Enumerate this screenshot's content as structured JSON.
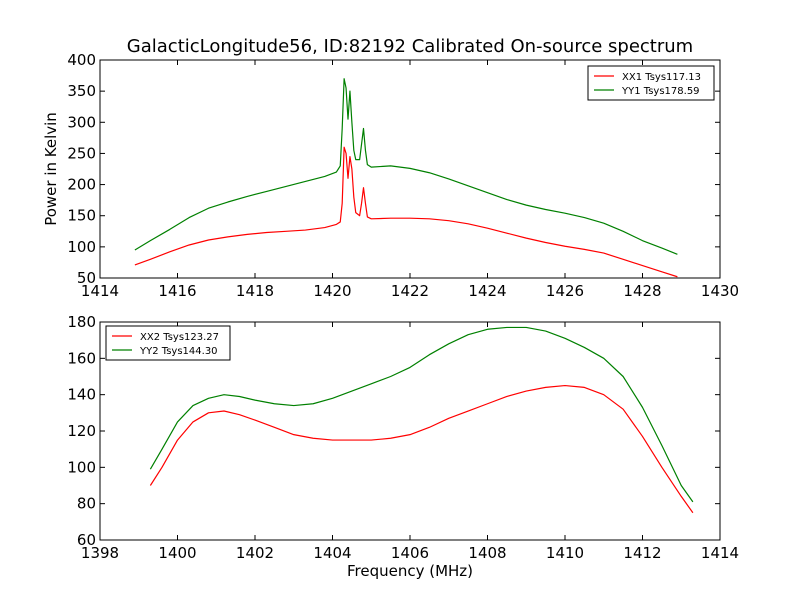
{
  "figure": {
    "title": "GalacticLongitude56, ID:82192 Calibrated On-source spectrum"
  },
  "colors": {
    "red": "#ff0000",
    "green": "#008000"
  },
  "chart_data": [
    {
      "type": "line",
      "title": "GalacticLongitude56, ID:82192 Calibrated On-source spectrum",
      "xlabel": "",
      "ylabel": "Power in Kelvin",
      "xlim": [
        1414,
        1430
      ],
      "ylim": [
        50,
        400
      ],
      "xticks": [
        "1414",
        "1416",
        "1418",
        "1420",
        "1422",
        "1424",
        "1426",
        "1428",
        "1430"
      ],
      "yticks": [
        "50",
        "100",
        "150",
        "200",
        "250",
        "300",
        "350",
        "400"
      ],
      "grid": false,
      "legend_position": "top-right",
      "series": [
        {
          "name": "XX1 Tsys117.13",
          "color": "#ff0000",
          "x": [
            1414.9,
            1415.3,
            1415.8,
            1416.3,
            1416.8,
            1417.3,
            1417.8,
            1418.3,
            1418.8,
            1419.3,
            1419.8,
            1420.1,
            1420.2,
            1420.25,
            1420.3,
            1420.35,
            1420.4,
            1420.45,
            1420.5,
            1420.55,
            1420.6,
            1420.7,
            1420.75,
            1420.8,
            1420.85,
            1420.9,
            1421.0,
            1421.5,
            1422.0,
            1422.5,
            1423.0,
            1423.5,
            1424.0,
            1424.5,
            1425.0,
            1425.5,
            1426.0,
            1426.5,
            1427.0,
            1427.5,
            1428.0,
            1428.5,
            1428.9
          ],
          "y": [
            71,
            80,
            92,
            103,
            111,
            116,
            120,
            123,
            125,
            127,
            131,
            136,
            140,
            170,
            260,
            250,
            210,
            245,
            225,
            180,
            155,
            150,
            170,
            195,
            170,
            148,
            145,
            146,
            146,
            145,
            142,
            137,
            130,
            122,
            114,
            107,
            101,
            96,
            90,
            80,
            70,
            60,
            52
          ]
        },
        {
          "name": "YY1 Tsys178.59",
          "color": "#008000",
          "x": [
            1414.9,
            1415.3,
            1415.8,
            1416.3,
            1416.8,
            1417.3,
            1417.8,
            1418.3,
            1418.8,
            1419.3,
            1419.8,
            1420.1,
            1420.2,
            1420.25,
            1420.3,
            1420.35,
            1420.4,
            1420.45,
            1420.5,
            1420.55,
            1420.6,
            1420.7,
            1420.75,
            1420.8,
            1420.85,
            1420.9,
            1421.0,
            1421.5,
            1422.0,
            1422.5,
            1423.0,
            1423.5,
            1424.0,
            1424.5,
            1425.0,
            1425.5,
            1426.0,
            1426.5,
            1427.0,
            1427.5,
            1428.0,
            1428.5,
            1428.9
          ],
          "y": [
            95,
            110,
            128,
            147,
            162,
            172,
            181,
            189,
            197,
            205,
            213,
            220,
            230,
            290,
            370,
            355,
            305,
            350,
            300,
            255,
            240,
            240,
            265,
            290,
            255,
            232,
            228,
            230,
            226,
            219,
            209,
            198,
            187,
            176,
            167,
            160,
            154,
            147,
            138,
            125,
            110,
            98,
            88
          ]
        }
      ]
    },
    {
      "type": "line",
      "title": "",
      "xlabel": "Frequency (MHz)",
      "ylabel": "",
      "xlim": [
        1398,
        1414
      ],
      "ylim": [
        60,
        180
      ],
      "xticks": [
        "1398",
        "1400",
        "1402",
        "1404",
        "1406",
        "1408",
        "1410",
        "1412",
        "1414"
      ],
      "yticks": [
        "60",
        "80",
        "100",
        "120",
        "140",
        "160",
        "180"
      ],
      "grid": false,
      "legend_position": "top-left",
      "series": [
        {
          "name": "XX2 Tsys123.27",
          "color": "#ff0000",
          "x": [
            1399.3,
            1399.6,
            1400.0,
            1400.4,
            1400.8,
            1401.2,
            1401.6,
            1402.0,
            1402.5,
            1403.0,
            1403.5,
            1404.0,
            1404.5,
            1405.0,
            1405.5,
            1406.0,
            1406.5,
            1407.0,
            1407.5,
            1408.0,
            1408.5,
            1409.0,
            1409.5,
            1410.0,
            1410.5,
            1411.0,
            1411.5,
            1412.0,
            1412.5,
            1413.0,
            1413.3
          ],
          "y": [
            90,
            100,
            115,
            125,
            130,
            131,
            129,
            126,
            122,
            118,
            116,
            115,
            115,
            115,
            116,
            118,
            122,
            127,
            131,
            135,
            139,
            142,
            144,
            145,
            144,
            140,
            132,
            117,
            100,
            84,
            75
          ]
        },
        {
          "name": "YY2 Tsys144.30",
          "color": "#008000",
          "x": [
            1399.3,
            1399.6,
            1400.0,
            1400.4,
            1400.8,
            1401.2,
            1401.6,
            1402.0,
            1402.5,
            1403.0,
            1403.5,
            1404.0,
            1404.5,
            1405.0,
            1405.5,
            1406.0,
            1406.5,
            1407.0,
            1407.5,
            1408.0,
            1408.5,
            1409.0,
            1409.5,
            1410.0,
            1410.5,
            1411.0,
            1411.5,
            1412.0,
            1412.5,
            1413.0,
            1413.3
          ],
          "y": [
            99,
            110,
            125,
            134,
            138,
            140,
            139,
            137,
            135,
            134,
            135,
            138,
            142,
            146,
            150,
            155,
            162,
            168,
            173,
            176,
            177,
            177,
            175,
            171,
            166,
            160,
            150,
            133,
            112,
            90,
            81
          ]
        }
      ]
    }
  ]
}
